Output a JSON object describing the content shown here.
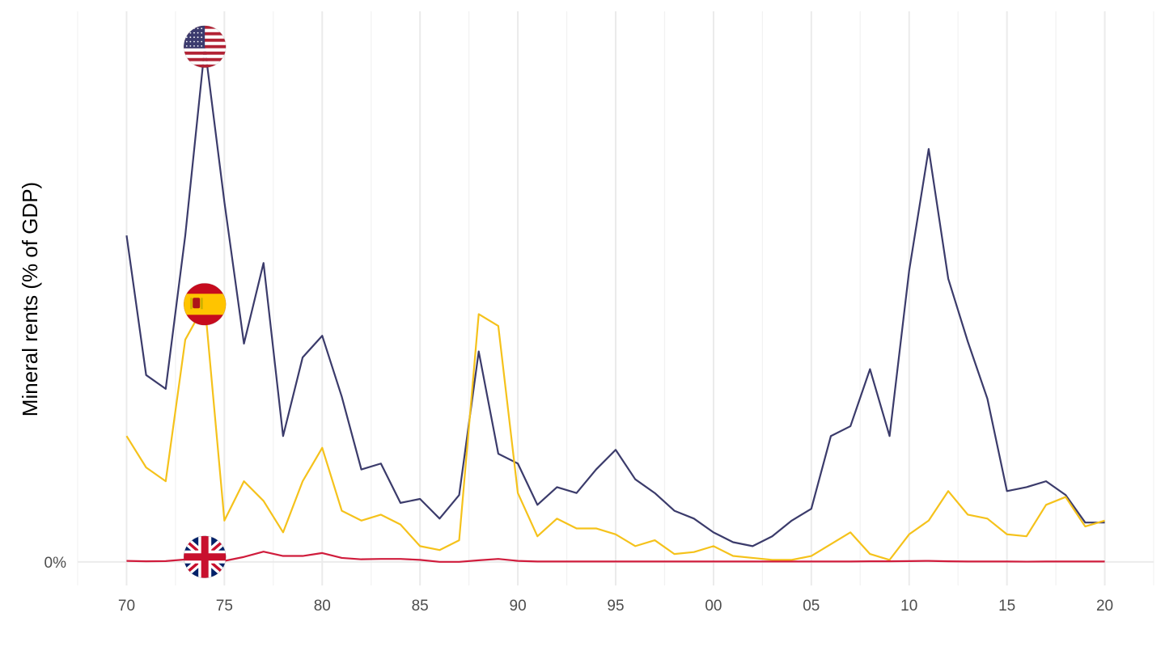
{
  "chart_data": {
    "type": "line",
    "title": "",
    "xlabel": "",
    "ylabel": "Mineral rents (% of GDP)",
    "x_tick_labels": [
      "70",
      "75",
      "80",
      "85",
      "90",
      "95",
      "00",
      "05",
      "10",
      "15",
      "20"
    ],
    "x_ticks": [
      1970,
      1975,
      1980,
      1985,
      1990,
      1995,
      2000,
      2005,
      2010,
      2015,
      2020
    ],
    "y_tick_labels": [
      "0%"
    ],
    "y_ticks": [
      0
    ],
    "xlim": [
      1967.5,
      2022.5
    ],
    "ylim": [
      -0.012,
      0.28
    ],
    "grid": true,
    "legend": "none",
    "x": [
      1970,
      1971,
      1972,
      1973,
      1974,
      1975,
      1976,
      1977,
      1978,
      1979,
      1980,
      1981,
      1982,
      1983,
      1984,
      1985,
      1986,
      1987,
      1988,
      1989,
      1990,
      1991,
      1992,
      1993,
      1994,
      1995,
      1996,
      1997,
      1998,
      1999,
      2000,
      2001,
      2002,
      2003,
      2004,
      2005,
      2006,
      2007,
      2008,
      2009,
      2010,
      2011,
      2012,
      2013,
      2014,
      2015,
      2016,
      2017,
      2018,
      2019,
      2020
    ],
    "series": [
      {
        "flag": "us-flag-icon",
        "color": "#3b3b6b",
        "values": [
          0.166,
          0.095,
          0.088,
          0.166,
          0.262,
          0.183,
          0.111,
          0.152,
          0.064,
          0.104,
          0.115,
          0.084,
          0.047,
          0.05,
          0.03,
          0.032,
          0.022,
          0.034,
          0.107,
          0.055,
          0.05,
          0.029,
          0.038,
          0.035,
          0.047,
          0.057,
          0.042,
          0.035,
          0.026,
          0.022,
          0.015,
          0.01,
          0.008,
          0.013,
          0.021,
          0.027,
          0.064,
          0.069,
          0.098,
          0.064,
          0.148,
          0.21,
          0.144,
          0.112,
          0.083,
          0.036,
          0.038,
          0.041,
          0.034,
          0.02,
          0.02
        ]
      },
      {
        "flag": "es-flag-icon",
        "color": "#f5c21b",
        "values": [
          0.064,
          0.048,
          0.041,
          0.113,
          0.131,
          0.021,
          0.041,
          0.031,
          0.015,
          0.041,
          0.058,
          0.026,
          0.021,
          0.024,
          0.019,
          0.008,
          0.006,
          0.011,
          0.126,
          0.12,
          0.035,
          0.013,
          0.022,
          0.017,
          0.017,
          0.014,
          0.008,
          0.011,
          0.004,
          0.005,
          0.008,
          0.003,
          0.002,
          0.001,
          0.001,
          0.003,
          0.009,
          0.015,
          0.004,
          0.001,
          0.014,
          0.021,
          0.036,
          0.024,
          0.022,
          0.014,
          0.013,
          0.029,
          0.033,
          0.018,
          0.021
        ]
      },
      {
        "flag": "uk-flag-icon",
        "color": "#d01c3c",
        "values": [
          0.0005,
          0.0003,
          0.0004,
          0.0012,
          0.0025,
          0.0005,
          0.0025,
          0.0052,
          0.003,
          0.003,
          0.0045,
          0.002,
          0.0013,
          0.0015,
          0.0015,
          0.001,
          0.0,
          0.0,
          0.0008,
          0.0015,
          0.0005,
          0.0002,
          0.0002,
          0.0002,
          0.0002,
          0.0002,
          0.0002,
          0.0002,
          0.0002,
          0.0002,
          0.0002,
          0.0002,
          0.0002,
          0.0002,
          0.0002,
          0.0002,
          0.0002,
          0.0002,
          0.0003,
          0.0003,
          0.0004,
          0.0005,
          0.0003,
          0.0002,
          0.0002,
          0.0002,
          0.0001,
          0.0002,
          0.0002,
          0.0002,
          0.0002
        ]
      }
    ],
    "flag_markers_at": 1974
  }
}
